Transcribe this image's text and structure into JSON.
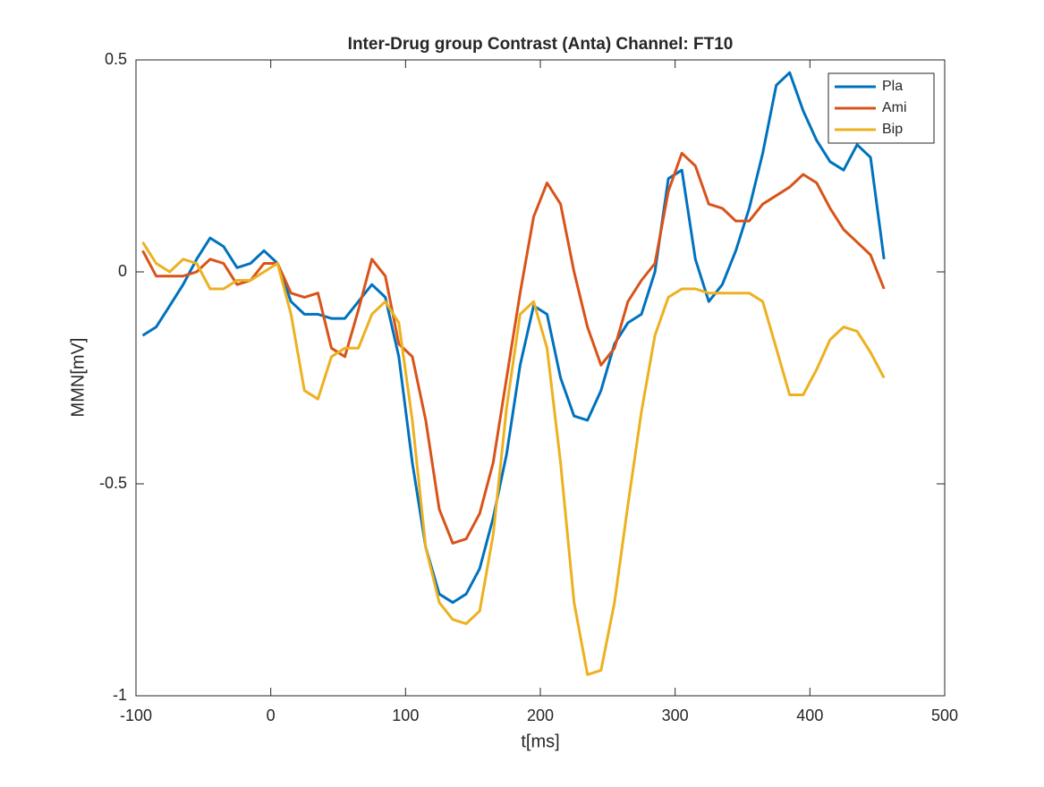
{
  "chart_data": {
    "type": "line",
    "title": "Inter-Drug group Contrast (Anta) Channel: FT10",
    "x_label": "t[ms]",
    "y_label": "MMN[mV]",
    "x": [
      -95,
      -85,
      -75,
      -65,
      -55,
      -45,
      -35,
      -25,
      -15,
      -5,
      5,
      15,
      25,
      35,
      45,
      55,
      65,
      75,
      85,
      95,
      105,
      115,
      125,
      135,
      145,
      155,
      165,
      175,
      185,
      195,
      205,
      215,
      225,
      235,
      245,
      255,
      265,
      275,
      285,
      295,
      305,
      315,
      325,
      335,
      345,
      355,
      365,
      375,
      385,
      395,
      405,
      415,
      425,
      435,
      445,
      455
    ],
    "series": [
      {
        "name": "Pla",
        "color": "#0072bd",
        "values": [
          -0.15,
          -0.13,
          -0.08,
          -0.03,
          0.03,
          0.08,
          0.06,
          0.01,
          0.02,
          0.05,
          0.02,
          -0.07,
          -0.1,
          -0.1,
          -0.11,
          -0.11,
          -0.07,
          -0.03,
          -0.06,
          -0.2,
          -0.45,
          -0.65,
          -0.76,
          -0.78,
          -0.76,
          -0.7,
          -0.58,
          -0.43,
          -0.22,
          -0.08,
          -0.1,
          -0.25,
          -0.34,
          -0.35,
          -0.28,
          -0.17,
          -0.12,
          -0.1,
          0.0,
          0.22,
          0.24,
          0.03,
          -0.07,
          -0.03,
          0.05,
          0.15,
          0.28,
          0.44,
          0.47,
          0.38,
          0.31,
          0.26,
          0.24,
          0.3,
          0.27,
          0.03
        ]
      },
      {
        "name": "Ami",
        "color": "#d95319",
        "values": [
          0.05,
          -0.01,
          -0.01,
          -0.01,
          0.0,
          0.03,
          0.02,
          -0.03,
          -0.02,
          0.02,
          0.02,
          -0.05,
          -0.06,
          -0.05,
          -0.18,
          -0.2,
          -0.09,
          0.03,
          -0.01,
          -0.17,
          -0.2,
          -0.35,
          -0.56,
          -0.64,
          -0.63,
          -0.57,
          -0.45,
          -0.25,
          -0.05,
          0.13,
          0.21,
          0.16,
          0.0,
          -0.13,
          -0.22,
          -0.18,
          -0.07,
          -0.02,
          0.02,
          0.19,
          0.28,
          0.25,
          0.16,
          0.15,
          0.12,
          0.12,
          0.16,
          0.18,
          0.2,
          0.23,
          0.21,
          0.15,
          0.1,
          0.07,
          0.04,
          -0.04
        ]
      },
      {
        "name": "Bip",
        "color": "#edb120",
        "values": [
          0.07,
          0.02,
          0.0,
          0.03,
          0.02,
          -0.04,
          -0.04,
          -0.02,
          -0.02,
          0.0,
          0.02,
          -0.1,
          -0.28,
          -0.3,
          -0.2,
          -0.18,
          -0.18,
          -0.1,
          -0.07,
          -0.12,
          -0.35,
          -0.65,
          -0.78,
          -0.82,
          -0.83,
          -0.8,
          -0.62,
          -0.32,
          -0.1,
          -0.07,
          -0.18,
          -0.45,
          -0.78,
          -0.95,
          -0.94,
          -0.78,
          -0.55,
          -0.33,
          -0.15,
          -0.06,
          -0.04,
          -0.04,
          -0.05,
          -0.05,
          -0.05,
          -0.05,
          -0.07,
          -0.18,
          -0.29,
          -0.29,
          -0.23,
          -0.16,
          -0.13,
          -0.14,
          -0.19,
          -0.25
        ]
      }
    ],
    "xlim": [
      -100,
      500
    ],
    "xticks": [
      -100,
      0,
      100,
      200,
      300,
      400,
      500
    ],
    "ylim": [
      -1,
      0.5
    ],
    "yticks": [
      -1,
      -0.5,
      0,
      0.5
    ],
    "grid": false,
    "legend_position": "northeast"
  }
}
